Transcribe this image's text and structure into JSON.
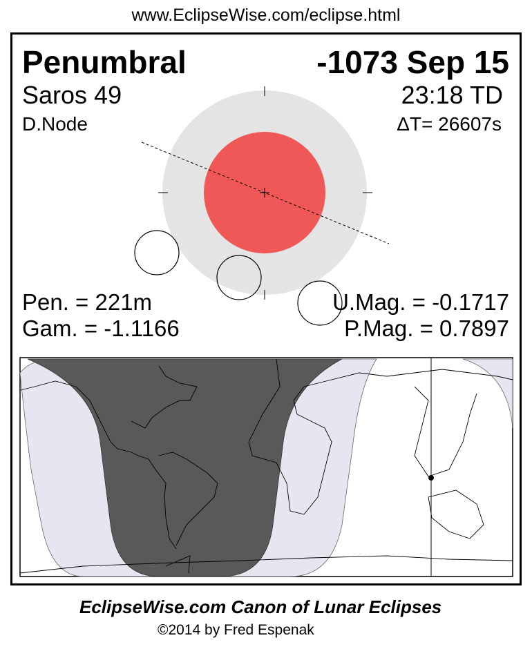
{
  "header": {
    "url": "www.EclipseWise.com/eclipse.html"
  },
  "eclipse": {
    "type": "Penumbral",
    "date": "-1073 Sep 15",
    "saros": "Saros  49",
    "time": "23:18 TD",
    "node": "D.Node",
    "delta_t": "ΔT=  26607s",
    "pen_duration": "Pen. = 221m",
    "gamma": "Gam. = -1.1166",
    "umbral_mag": "U.Mag. = -0.1717",
    "penumbral_mag": "P.Mag. = 0.7897"
  },
  "colors": {
    "umbra": "#f05858",
    "penumbra": "#e4e4e4",
    "night": "#595959",
    "penumbral_visibility": "#e6e6f0"
  },
  "footer": {
    "title": "EclipseWise.com Canon of Lunar Eclipses",
    "copyright": "©2014 by Fred Espenak"
  }
}
